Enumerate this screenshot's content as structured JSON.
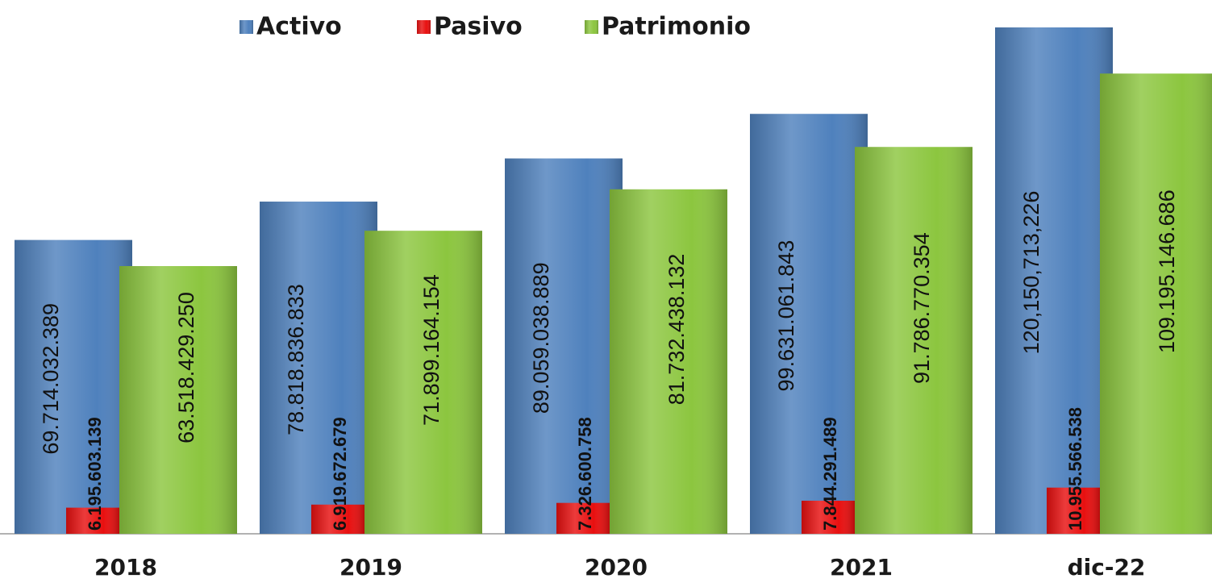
{
  "chart_data": {
    "type": "bar",
    "categories": [
      "2018",
      "2019",
      "2020",
      "2021",
      "dic-22"
    ],
    "series": [
      {
        "name": "Activo",
        "color": "#4f81bd",
        "values": [
          69714032389,
          78818836833,
          89059038889,
          99631061843,
          120150713226
        ],
        "value_labels": [
          "69.714.032.389",
          "78.818.836.833",
          "89.059.038.889",
          "99.631.061.843",
          "120,150,713,226"
        ]
      },
      {
        "name": "Pasivo",
        "color": "#e81010",
        "values": [
          6195603139,
          6919672679,
          7326600758,
          7844291489,
          10955566538
        ],
        "value_labels": [
          "6.195.603.139",
          "6.919.672.679",
          "7.326.600.758",
          "7.844.291.489",
          "10.955.566.538"
        ]
      },
      {
        "name": "Patrimonio",
        "color": "#8cc63f",
        "values": [
          63518429250,
          71899164154,
          81732438132,
          91786770354,
          109195146686
        ],
        "value_labels": [
          "63.518.429.250",
          "71.899.164.154",
          "81.732.438.132",
          "91.786.770.354",
          "109.195.146.686"
        ]
      }
    ],
    "legend": "top"
  }
}
